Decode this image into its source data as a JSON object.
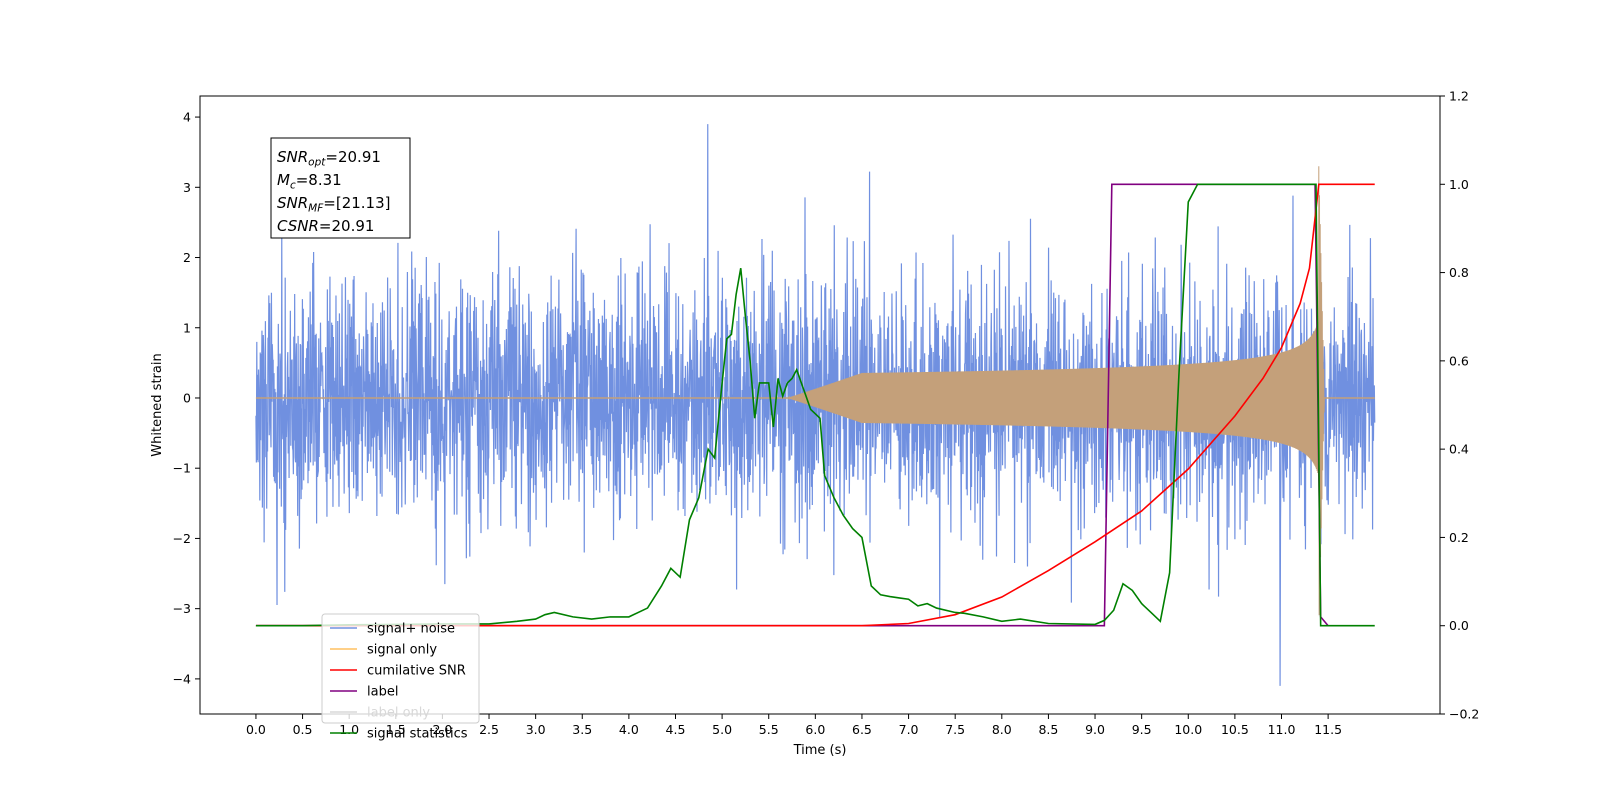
{
  "chart_data": {
    "type": "line",
    "xlabel": "Time (s)",
    "ylabel": "Whitened strain",
    "xlim": [
      -0.6,
      12.7
    ],
    "ylim_left": [
      -4.5,
      4.3
    ],
    "ylim_right": [
      -0.2,
      1.2
    ],
    "x_ticks": [
      "0.0",
      "0.5",
      "1.0",
      "1.5",
      "2.0",
      "2.5",
      "3.0",
      "3.5",
      "4.0",
      "4.5",
      "5.0",
      "5.5",
      "6.0",
      "6.5",
      "7.0",
      "7.5",
      "8.0",
      "8.5",
      "9.0",
      "9.5",
      "10.0",
      "10.5",
      "11.0",
      "11.5"
    ],
    "y_ticks_left": [
      "4",
      "3",
      "2",
      "1",
      "0",
      "−1",
      "−2",
      "−3",
      "−4"
    ],
    "y_ticks_right": [
      "1.2",
      "1.0",
      "0.8",
      "0.6",
      "0.4",
      "0.2",
      "0.0",
      "−0.2"
    ],
    "grid": false,
    "legend_position": "lower-left",
    "annotation": [
      {
        "main": "SNR",
        "sub": "opt",
        "value": "=20.91"
      },
      {
        "main": "M",
        "sub": "c",
        "value": "=8.31"
      },
      {
        "main": "SNR",
        "sub": "MF",
        "value": "=[21.13]"
      },
      {
        "main": "CSNR",
        "sub": "",
        "value": "=20.91"
      }
    ],
    "legend": [
      {
        "label": "signal+ noise",
        "color": "#7090e0"
      },
      {
        "label": "signal only",
        "color": "#ffc060"
      },
      {
        "label": "cumilative SNR",
        "color": "#ff0000"
      },
      {
        "label": "label",
        "color": "#800080"
      },
      {
        "label": "label only",
        "color": "#d8d8d8"
      },
      {
        "label": "signal statistics",
        "color": "#008000"
      }
    ],
    "series": [
      {
        "name": "signal+ noise",
        "axis": "left",
        "color": "#7090e0",
        "x_range": [
          0.0,
          12.0
        ],
        "envelope_amplitude": 1.6,
        "peak_max": 3.9,
        "peak_min": -4.1
      },
      {
        "name": "signal only",
        "axis": "left",
        "color": "#c4a07a",
        "x_range": [
          0.0,
          12.0
        ],
        "chirp_start": 6.5,
        "merger_time": 11.4,
        "peak_amplitude": 3.3
      },
      {
        "name": "cumilative SNR",
        "axis": "right",
        "x": [
          0.0,
          6.5,
          7.0,
          7.5,
          8.0,
          8.5,
          9.0,
          9.5,
          10.0,
          10.5,
          10.8,
          11.0,
          11.2,
          11.3,
          11.4,
          11.5,
          12.0
        ],
        "y": [
          0.0,
          0.0,
          0.005,
          0.025,
          0.065,
          0.125,
          0.19,
          0.26,
          0.355,
          0.475,
          0.56,
          0.63,
          0.73,
          0.81,
          1.0,
          1.0,
          1.0
        ],
        "color": "#ff0000"
      },
      {
        "name": "label",
        "axis": "right",
        "x": [
          0.0,
          9.1,
          9.18,
          11.36,
          11.42,
          11.5
        ],
        "y": [
          0.0,
          0.0,
          1.0,
          1.0,
          0.02,
          0.0
        ],
        "color": "#800080"
      },
      {
        "name": "signal statistics",
        "axis": "right",
        "x": [
          0.0,
          0.5,
          1.0,
          1.5,
          2.0,
          2.5,
          2.8,
          3.0,
          3.1,
          3.2,
          3.4,
          3.6,
          3.8,
          4.0,
          4.2,
          4.35,
          4.45,
          4.55,
          4.65,
          4.75,
          4.85,
          4.92,
          5.0,
          5.05,
          5.1,
          5.15,
          5.2,
          5.25,
          5.3,
          5.35,
          5.4,
          5.5,
          5.55,
          5.6,
          5.65,
          5.7,
          5.75,
          5.8,
          5.9,
          5.95,
          6.0,
          6.05,
          6.1,
          6.2,
          6.3,
          6.4,
          6.5,
          6.6,
          6.7,
          6.8,
          6.9,
          7.0,
          7.1,
          7.2,
          7.3,
          7.5,
          7.6,
          7.8,
          8.0,
          8.2,
          8.5,
          9.0,
          9.1,
          9.2,
          9.3,
          9.4,
          9.5,
          9.6,
          9.7,
          9.8,
          9.9,
          10.0,
          10.1,
          10.2,
          10.5,
          11.0,
          11.3,
          11.37,
          11.42,
          11.5,
          12.0
        ],
        "y": [
          0.0,
          0.0,
          0.002,
          0.003,
          0.004,
          0.004,
          0.01,
          0.015,
          0.025,
          0.03,
          0.02,
          0.015,
          0.02,
          0.02,
          0.04,
          0.09,
          0.13,
          0.11,
          0.24,
          0.29,
          0.4,
          0.38,
          0.55,
          0.65,
          0.66,
          0.75,
          0.81,
          0.7,
          0.6,
          0.47,
          0.55,
          0.55,
          0.45,
          0.56,
          0.52,
          0.55,
          0.56,
          0.58,
          0.52,
          0.49,
          0.48,
          0.47,
          0.34,
          0.29,
          0.25,
          0.22,
          0.2,
          0.09,
          0.07,
          0.066,
          0.063,
          0.06,
          0.045,
          0.05,
          0.04,
          0.03,
          0.028,
          0.02,
          0.01,
          0.015,
          0.005,
          0.003,
          0.012,
          0.035,
          0.095,
          0.08,
          0.05,
          0.03,
          0.01,
          0.12,
          0.57,
          0.96,
          1.0,
          1.0,
          1.0,
          1.0,
          1.0,
          1.0,
          0.0,
          0.0,
          0.0
        ],
        "color": "#008000"
      }
    ]
  }
}
